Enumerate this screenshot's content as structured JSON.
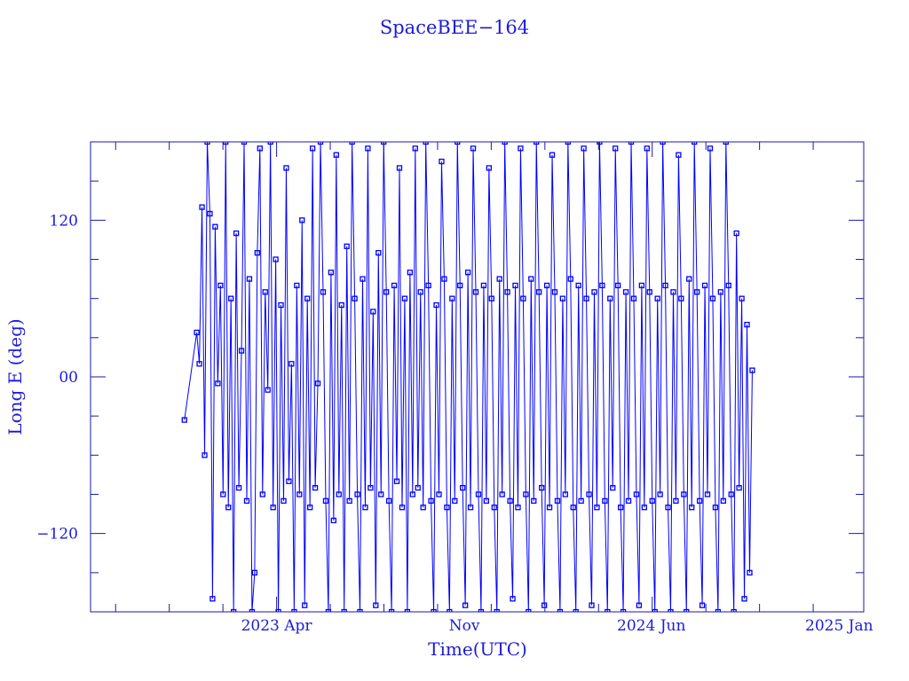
{
  "chart_data": {
    "type": "line",
    "title": "SpaceBEE−164",
    "xlabel": "Time(UTC)",
    "ylabel": "Long E (deg)",
    "xlim": [
      "2022-09-01",
      "2025-01-29"
    ],
    "ylim": [
      -180,
      180
    ],
    "grid": false,
    "markers": "open-square",
    "color": "#0000ff",
    "axis_color": "#1a1aa8",
    "x_ticks": [
      {
        "date": "2023-04-01",
        "label": "2023 Apr"
      },
      {
        "date": "2023-11-01",
        "label": "Nov"
      },
      {
        "date": "2024-06-01",
        "label": "2024 Jun"
      },
      {
        "date": "2025-01-01",
        "label": "2025 Jan"
      }
    ],
    "y_ticks": [
      {
        "value": 120,
        "label": "120"
      },
      {
        "value": 0,
        "label": "00"
      },
      {
        "value": -120,
        "label": "−120"
      }
    ],
    "y_minor_step": 30,
    "series": [
      {
        "name": "SpaceBEE-164",
        "lead_points": [
          [
            "2022-12-17",
            -33
          ],
          [
            "2022-12-31",
            34
          ]
        ],
        "start_date": "2023-01-03",
        "step_days": 3,
        "values": [
          10,
          130,
          -60,
          180,
          125,
          -170,
          115,
          -5,
          70,
          -90,
          180,
          -100,
          60,
          -180,
          110,
          -85,
          20,
          180,
          -95,
          75,
          -180,
          -150,
          95,
          175,
          -90,
          65,
          -10,
          180,
          -100,
          90,
          -180,
          55,
          -95,
          160,
          -80,
          10,
          -180,
          70,
          -90,
          120,
          -175,
          60,
          -100,
          175,
          -85,
          -5,
          180,
          65,
          -95,
          -180,
          80,
          -110,
          170,
          -90,
          55,
          -180,
          100,
          -95,
          180,
          60,
          -90,
          -180,
          75,
          -100,
          175,
          -85,
          50,
          -175,
          95,
          -90,
          180,
          65,
          -95,
          -180,
          70,
          -80,
          160,
          -100,
          60,
          -180,
          80,
          -90,
          175,
          -85,
          65,
          -100,
          180,
          70,
          -95,
          -180,
          55,
          -90,
          165,
          75,
          -100,
          -180,
          60,
          -95,
          180,
          70,
          -85,
          -175,
          80,
          -100,
          175,
          65,
          -90,
          -180,
          70,
          -95,
          160,
          60,
          -100,
          -180,
          75,
          -90,
          180,
          65,
          -95,
          -170,
          70,
          -100,
          175,
          60,
          -90,
          -180,
          75,
          -95,
          180,
          65,
          -85,
          -175,
          70,
          -100,
          170,
          65,
          -95,
          -180,
          60,
          -90,
          180,
          75,
          -100,
          -180,
          70,
          -95,
          175,
          60,
          -90,
          -175,
          65,
          -100,
          180,
          70,
          -95,
          -180,
          60,
          -85,
          175,
          70,
          -100,
          -180,
          65,
          -95,
          180,
          60,
          -90,
          -175,
          70,
          -100,
          175,
          65,
          -95,
          -180,
          60,
          -90,
          180,
          70,
          -100,
          -180,
          65,
          -95,
          170,
          60,
          -90,
          -180,
          75,
          -100,
          180,
          65,
          -95,
          -175,
          70,
          -90,
          175,
          60,
          -100,
          -180,
          65,
          -95,
          180,
          70,
          -90,
          -180,
          110,
          -85,
          60,
          -170,
          40,
          -150,
          5
        ]
      }
    ]
  }
}
